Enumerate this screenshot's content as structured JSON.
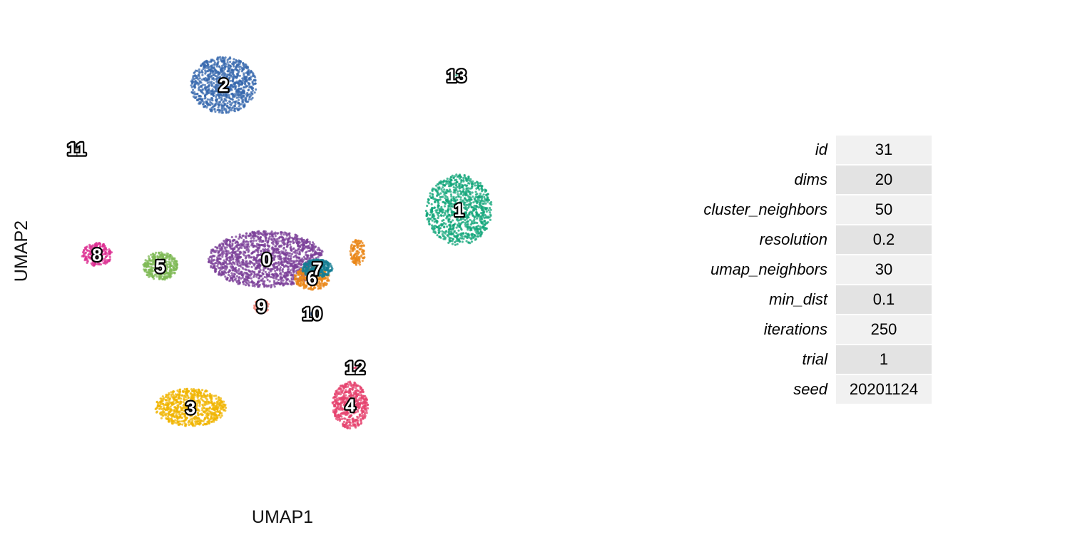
{
  "chart_data": {
    "type": "scatter",
    "xlabel": "UMAP1",
    "ylabel": "UMAP2",
    "grid": false,
    "xlim": [
      -10,
      10
    ],
    "ylim": [
      -10,
      10
    ],
    "clusters": [
      {
        "label": "0",
        "color": "#7b3f98",
        "x": -0.6,
        "y": 0.2,
        "rx": 2.3,
        "ry": 1.2,
        "n": 1500
      },
      {
        "label": "1",
        "color": "#12a67a",
        "x": 7.0,
        "y": 2.3,
        "rx": 1.3,
        "ry": 1.5,
        "n": 900
      },
      {
        "label": "2",
        "color": "#3768ae",
        "x": -2.3,
        "y": 7.6,
        "rx": 1.3,
        "ry": 1.2,
        "n": 900
      },
      {
        "label": "3",
        "color": "#f0b400",
        "x": -3.6,
        "y": -6.1,
        "rx": 1.4,
        "ry": 0.8,
        "n": 700
      },
      {
        "label": "4",
        "color": "#e6416e",
        "x": 2.7,
        "y": -6.0,
        "rx": 0.7,
        "ry": 1.0,
        "n": 500
      },
      {
        "label": "5",
        "color": "#7fb956",
        "x": -4.8,
        "y": -0.1,
        "rx": 0.7,
        "ry": 0.6,
        "n": 350
      },
      {
        "label": "6",
        "color": "#e98516",
        "x": 1.2,
        "y": -0.6,
        "rx": 0.7,
        "ry": 0.5,
        "n": 300
      },
      {
        "label": "7",
        "color": "#147e93",
        "x": 1.4,
        "y": -0.2,
        "rx": 0.6,
        "ry": 0.4,
        "n": 300
      },
      {
        "label": "8",
        "color": "#dc2f91",
        "x": -7.3,
        "y": 0.4,
        "rx": 0.6,
        "ry": 0.5,
        "n": 200
      },
      {
        "label": "9",
        "color": "#f07f73",
        "x": -0.8,
        "y": -1.8,
        "rx": 0.3,
        "ry": 0.3,
        "n": 80
      },
      {
        "label": "10",
        "color": "#3768ae",
        "x": 1.2,
        "y": -2.1,
        "rx": 0.05,
        "ry": 0.08,
        "n": 6
      },
      {
        "label": "11",
        "color": "#777777",
        "x": -8.1,
        "y": 4.9,
        "rx": 0.08,
        "ry": 0.08,
        "n": 6
      },
      {
        "label": "12",
        "color": "#e6416e",
        "x": 2.9,
        "y": -4.4,
        "rx": 0.05,
        "ry": 0.05,
        "n": 3
      },
      {
        "label": "13",
        "color": "#12a67a",
        "x": 6.9,
        "y": 8.0,
        "rx": 0.02,
        "ry": 0.02,
        "n": 1
      }
    ],
    "extra_series": [
      {
        "label": "",
        "color": "#e98516",
        "x": 3.0,
        "y": 0.5,
        "rx": 0.3,
        "ry": 0.55,
        "n": 120
      }
    ]
  },
  "params": [
    {
      "name": "id",
      "value": "31"
    },
    {
      "name": "dims",
      "value": "20"
    },
    {
      "name": "cluster_neighbors",
      "value": "50"
    },
    {
      "name": "resolution",
      "value": "0.2"
    },
    {
      "name": "umap_neighbors",
      "value": "30"
    },
    {
      "name": "min_dist",
      "value": "0.1"
    },
    {
      "name": "iterations",
      "value": "250"
    },
    {
      "name": "trial",
      "value": "1"
    },
    {
      "name": "seed",
      "value": "20201124"
    }
  ]
}
